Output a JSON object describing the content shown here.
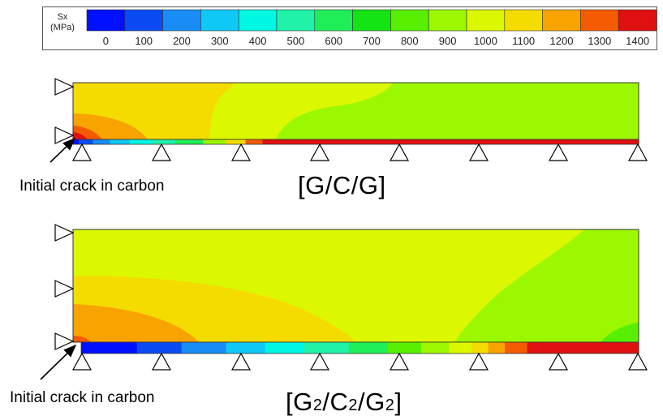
{
  "legend": {
    "title_line1": "Sx",
    "title_line2": "(MPa)",
    "ticks": [
      "0",
      "100",
      "200",
      "300",
      "400",
      "500",
      "600",
      "700",
      "800",
      "900",
      "1000",
      "1100",
      "1200",
      "1300",
      "1400"
    ],
    "colors": [
      "#0010ff",
      "#0a4cf2",
      "#1a8cf5",
      "#10c8f5",
      "#00f8e2",
      "#20f2a8",
      "#20ee58",
      "#14e414",
      "#58f000",
      "#9cf800",
      "#dcf800",
      "#f4dc00",
      "#f8a400",
      "#f45a00",
      "#e01010"
    ]
  },
  "annotations": {
    "crack_label_1": "Initial crack in carbon",
    "crack_label_2": "Initial crack in carbon"
  },
  "captions": {
    "ggc_title": "[G/C/G]",
    "g2_base": "G",
    "g2_sub": "2",
    "c2_base": "C",
    "c2_sub": "2",
    "slash": "/",
    "open_bracket": "[",
    "close_bracket": "]"
  }
}
